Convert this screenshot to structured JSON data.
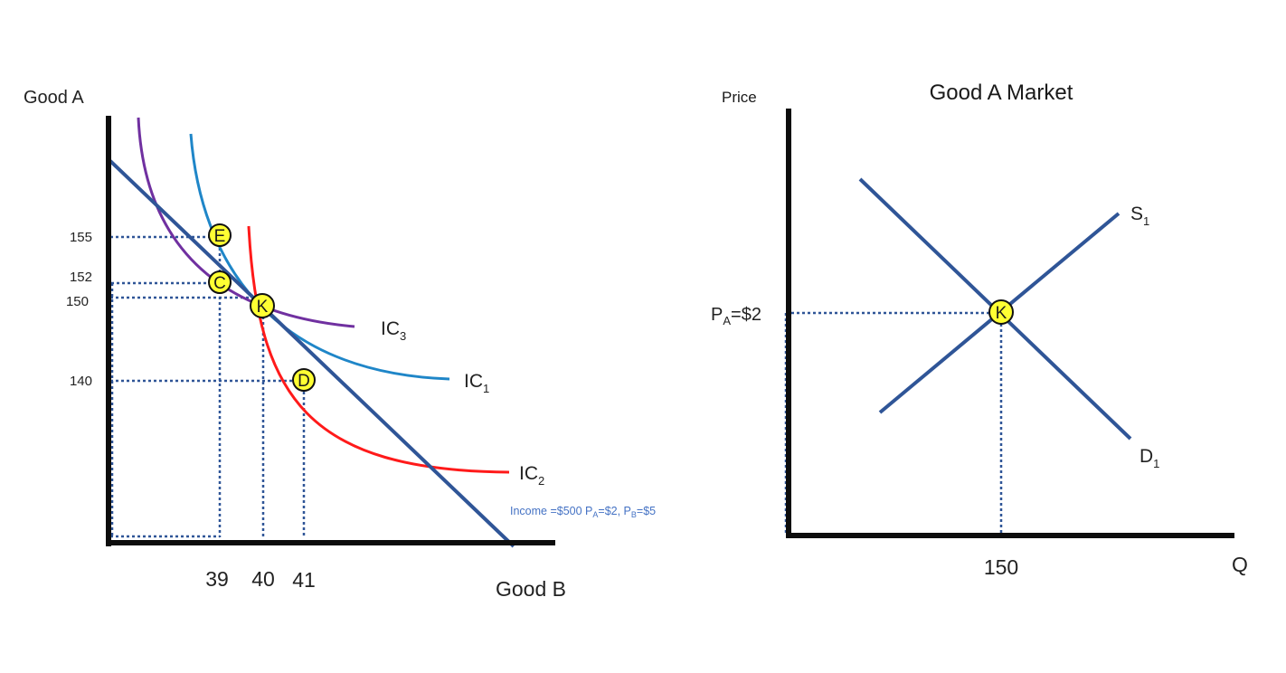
{
  "chart_data": [
    {
      "type": "line",
      "subtype": "indifference-curve-diagram",
      "title": "",
      "ylabel": "Good A",
      "xlabel": "Good B",
      "y_ticks": [
        "155",
        "152",
        "150",
        "140"
      ],
      "x_ticks": [
        "39",
        "40",
        "41"
      ],
      "budget_line": {
        "label_parts": [
          "Income =$500 P",
          "A",
          "=$2, P",
          "B",
          "=$5"
        ],
        "color": "#2f5597"
      },
      "curves": [
        {
          "name_base": "IC",
          "name_sub": "3",
          "color": "#7030a0"
        },
        {
          "name_base": "IC",
          "name_sub": "1",
          "color": "#1f86c8"
        },
        {
          "name_base": "IC",
          "name_sub": "2",
          "color": "#ff1a1a"
        }
      ],
      "points": [
        {
          "label": "E",
          "x": "39",
          "y": "155"
        },
        {
          "label": "C",
          "x": "39",
          "y": "152"
        },
        {
          "label": "K",
          "x": "40",
          "y": "150"
        },
        {
          "label": "D",
          "x": "41",
          "y": "140"
        }
      ],
      "point_fill": "#ffff33",
      "guide_color": "#2f5597"
    },
    {
      "type": "line",
      "subtype": "supply-demand-diagram",
      "title": "Good A Market",
      "ylabel": "Price",
      "xlabel": "Q",
      "price_tick": {
        "base": "P",
        "sub": "A",
        "rest": "=$2"
      },
      "quantity_tick": "150",
      "lines": [
        {
          "name_base": "S",
          "name_sub": "1",
          "color": "#2f5597"
        },
        {
          "name_base": "D",
          "name_sub": "1",
          "color": "#2f5597"
        }
      ],
      "equilibrium": {
        "label": "K",
        "price": "$2",
        "quantity": "150"
      },
      "point_fill": "#ffff33"
    }
  ]
}
